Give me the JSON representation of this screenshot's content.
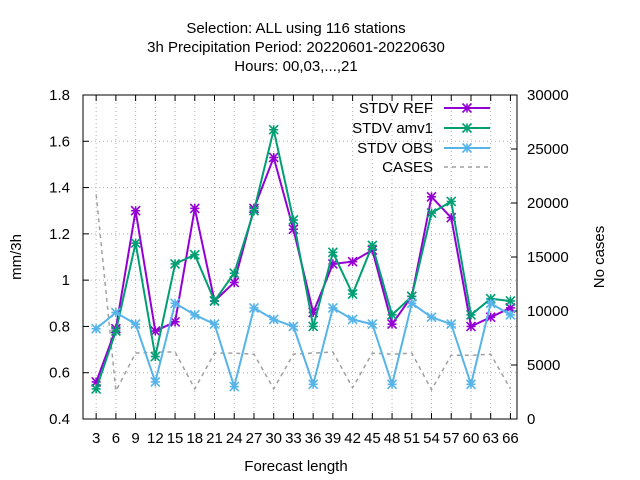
{
  "chart_data": {
    "type": "line",
    "title_lines": [
      "Selection: ALL using   116 stations",
      "3h Precipitation   Period: 20220601-20220630",
      "Hours:  00,03,...,21"
    ],
    "xlabel": "Forecast length",
    "ylabel": "mm/3h",
    "y2label": "No cases",
    "x": [
      3,
      6,
      9,
      12,
      15,
      18,
      21,
      24,
      27,
      30,
      33,
      36,
      39,
      42,
      45,
      48,
      51,
      54,
      57,
      60,
      63,
      66
    ],
    "ylim": [
      0.4,
      1.8
    ],
    "yticks": [
      "0.4",
      "0.6",
      "0.8",
      "1",
      "1.2",
      "1.4",
      "1.6",
      "1.8"
    ],
    "y2lim": [
      0,
      30000
    ],
    "y2ticks": [
      "0",
      "5000",
      "10000",
      "15000",
      "20000",
      "25000",
      "30000"
    ],
    "grid": true,
    "legend_position": "top-right",
    "series": [
      {
        "name": "STDV REF",
        "color": "#9400d3",
        "axis": "y1",
        "dash": false,
        "values": [
          0.56,
          0.79,
          1.3,
          0.78,
          0.82,
          1.31,
          0.91,
          0.99,
          1.31,
          1.53,
          1.22,
          0.86,
          1.07,
          1.08,
          1.13,
          0.81,
          0.93,
          1.36,
          1.27,
          0.8,
          0.84,
          0.88
        ]
      },
      {
        "name": "STDV amv1",
        "color": "#009e73",
        "axis": "y1",
        "dash": false,
        "values": [
          0.53,
          0.78,
          1.16,
          0.67,
          1.07,
          1.11,
          0.91,
          1.03,
          1.3,
          1.65,
          1.26,
          0.8,
          1.12,
          0.94,
          1.15,
          0.85,
          0.93,
          1.29,
          1.34,
          0.85,
          0.92,
          0.91
        ]
      },
      {
        "name": "STDV OBS",
        "color": "#56b4e9",
        "axis": "y1",
        "dash": false,
        "values": [
          0.79,
          0.86,
          0.81,
          0.56,
          0.9,
          0.85,
          0.81,
          0.54,
          0.88,
          0.83,
          0.8,
          0.55,
          0.88,
          0.83,
          0.81,
          0.55,
          0.9,
          0.84,
          0.81,
          0.55,
          0.9,
          0.85
        ]
      },
      {
        "name": "CASES",
        "color": "#a0a0a0",
        "axis": "y2",
        "dash": true,
        "values": [
          20800,
          2600,
          6100,
          6200,
          6200,
          2800,
          6100,
          6100,
          6000,
          2800,
          6000,
          6100,
          6200,
          2900,
          6100,
          6000,
          6100,
          2700,
          5900,
          5900,
          6000,
          2800
        ]
      }
    ]
  }
}
